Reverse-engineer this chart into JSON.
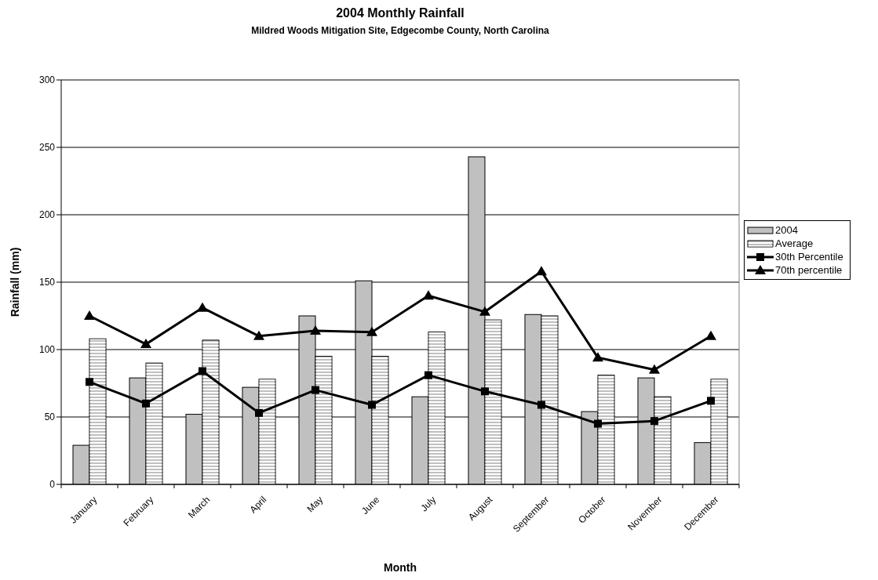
{
  "chart_data": {
    "type": "bar",
    "title": "2004 Monthly Rainfall",
    "subtitle": "Mildred Woods Mitigation Site, Edgecombe County, North Carolina",
    "xlabel": "Month",
    "ylabel": "Rainfall (mm)",
    "categories": [
      "January",
      "February",
      "March",
      "April",
      "May",
      "June",
      "July",
      "August",
      "September",
      "October",
      "November",
      "December"
    ],
    "series": [
      {
        "name": "2004",
        "color": "#c0c0c0",
        "values": [
          29,
          79,
          52,
          72,
          125,
          151,
          65,
          243,
          126,
          54,
          79,
          31
        ]
      },
      {
        "name": "Average",
        "color": "#c0c0c0",
        "values": [
          108,
          90,
          107,
          78,
          95,
          95,
          113,
          122,
          125,
          81,
          65,
          78
        ]
      },
      {
        "name": "30th Percentile",
        "type": "line",
        "color": "#000000",
        "marker": "square",
        "values": [
          76,
          60,
          84,
          53,
          70,
          59,
          81,
          69,
          59,
          45,
          47,
          62
        ]
      },
      {
        "name": "70th percentile",
        "type": "line",
        "color": "#000000",
        "marker": "triangle",
        "values": [
          125,
          104,
          131,
          110,
          114,
          113,
          140,
          128,
          158,
          94,
          85,
          110
        ]
      }
    ],
    "ylim": [
      0,
      300
    ],
    "yticks": [
      0,
      50,
      100,
      150,
      200,
      250,
      300
    ],
    "grid": "y",
    "legend": "right"
  }
}
